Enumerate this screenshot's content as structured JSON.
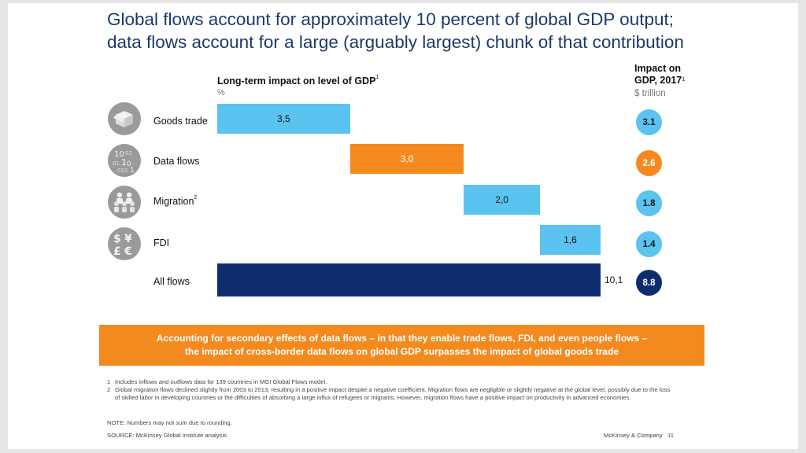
{
  "title": {
    "line1": "Global flows account for approximately 10 percent of global GDP output;",
    "line2": "data flows account for a large (arguably largest) chunk of that contribution"
  },
  "chart_data": {
    "type": "bar",
    "subtype": "waterfall",
    "title": "Long-term impact on level of GDP",
    "title_footnote": "1",
    "unit": "%",
    "categories": [
      "Goods trade",
      "Data flows",
      "Migration",
      "FDI",
      "All flows"
    ],
    "category_footnotes": [
      "",
      "",
      "2",
      "",
      ""
    ],
    "values": [
      3.5,
      3.0,
      2.0,
      1.6,
      10.1
    ],
    "value_labels": [
      "3,5",
      "3,0",
      "2,0",
      "1,6",
      "10,1"
    ],
    "total_index": 4,
    "xlim": [
      0,
      10.1
    ],
    "colors": [
      "#5bc3f0",
      "#f48a1f",
      "#5bc3f0",
      "#5bc3f0",
      "#0d2d6e"
    ],
    "secondary": {
      "title_line1": "Impact on",
      "title_line2": "GDP, 2017",
      "title_footnote": "1",
      "unit": "$ trillion",
      "values": [
        3.1,
        2.6,
        1.8,
        1.4,
        8.8
      ],
      "labels": [
        "3.1",
        "2.6",
        "1.8",
        "1.4",
        "8.8"
      ]
    }
  },
  "icons": [
    "box-icon",
    "binary-data-icon",
    "people-icon",
    "currency-icon"
  ],
  "callout": {
    "line1": "Accounting for secondary effects of data flows – in that they enable trade flows, FDI, and even people flows –",
    "line2": "the impact of cross-border data flows on global GDP surpasses the impact of global goods trade",
    "color": "#f28a1f"
  },
  "footnotes": [
    {
      "num": "1",
      "text": "Includes inflows and outflows data for 139 countries in MGI Global Flows model."
    },
    {
      "num": "2",
      "text": "Global migration flows declined slightly from 2003 to 2013, resulting in a positive impact despite a negative coefficient. Migration flows are negligible or slightly negative at the global level, possibly due to the loss of skilled labor in developing countries or the difficulties of absorbing a large influx of refugees or migrants. However, migration flows have a positive impact on productivity in advanced economies."
    }
  ],
  "note": "NOTE: Numbers may not sum due to rounding.",
  "source": "SOURCE: McKinsey Global Institute analysis",
  "brand": "McKinsey & Company",
  "page_number": "11",
  "colors": {
    "title": "#1b3a6b",
    "light_blue": "#5bc3f0",
    "orange": "#f48a1f",
    "navy": "#0d2d6e",
    "icon_gray": "#9a9a9a"
  }
}
